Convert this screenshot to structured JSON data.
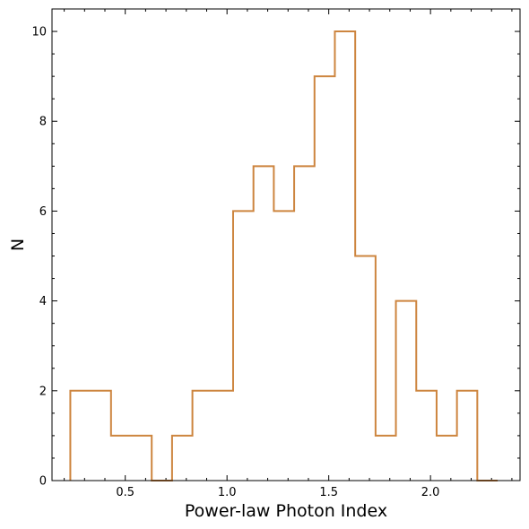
{
  "chart_data": {
    "type": "histogram",
    "title": "",
    "xlabel": "Power-law Photon Index",
    "ylabel": "N",
    "xlim": [
      0.14,
      2.44
    ],
    "ylim": [
      0,
      10.5
    ],
    "x_ticks": [
      0.5,
      1.0,
      1.5,
      2.0
    ],
    "x_tick_labels": [
      "0.5",
      "1.0",
      "1.5",
      "2.0"
    ],
    "x_minor_step": 0.1,
    "y_ticks": [
      0,
      2,
      4,
      6,
      8,
      10
    ],
    "y_tick_labels": [
      "0",
      "2",
      "4",
      "6",
      "8",
      "10"
    ],
    "y_minor_step": 0.5,
    "grid": false,
    "color": "#cd853f",
    "bin_edges": [
      0.23,
      0.33,
      0.43,
      0.53,
      0.63,
      0.73,
      0.83,
      0.93,
      1.03,
      1.13,
      1.23,
      1.33,
      1.43,
      1.53,
      1.63,
      1.73,
      1.83,
      1.93,
      2.03,
      2.13,
      2.23,
      2.33
    ],
    "counts": [
      2,
      2,
      1,
      1,
      0,
      1,
      2,
      2,
      6,
      7,
      6,
      7,
      9,
      10,
      5,
      1,
      4,
      2,
      1,
      2,
      0
    ]
  }
}
